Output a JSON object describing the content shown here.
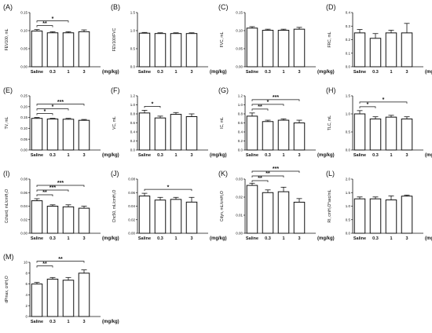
{
  "figure": {
    "unit_label": "(mg/kg)"
  },
  "chart_data": [
    {
      "type": "bar",
      "letter": "(A)",
      "ylabel": "FEV100, mL",
      "categories": [
        "Saline",
        "0.3",
        "1",
        "3"
      ],
      "values": [
        0.099,
        0.094,
        0.094,
        0.097
      ],
      "errors": [
        0.004,
        0.003,
        0.003,
        0.005
      ],
      "ylim": [
        0,
        0.15
      ],
      "ticks": [
        "0.00",
        "0.05",
        "0.10",
        "0.15"
      ],
      "tick_values": [
        0,
        0.05,
        0.1,
        0.15
      ],
      "sig": [
        {
          "from": 0,
          "to": 1,
          "label": "**"
        },
        {
          "from": 0,
          "to": 2,
          "label": "*"
        }
      ]
    },
    {
      "type": "bar",
      "letter": "(B)",
      "ylabel": "FEV100/FVC",
      "categories": [
        "Saline",
        "0.3",
        "1",
        "3"
      ],
      "values": [
        0.93,
        0.92,
        0.92,
        0.92
      ],
      "errors": [
        0.02,
        0.02,
        0.02,
        0.02
      ],
      "ylim": [
        0,
        1.5
      ],
      "ticks": [
        "0.0",
        "0.5",
        "1.0",
        "1.5"
      ],
      "tick_values": [
        0,
        0.5,
        1,
        1.5
      ],
      "sig": []
    },
    {
      "type": "bar",
      "letter": "(C)",
      "ylabel": "FVC, mL",
      "categories": [
        "Saline",
        "0.3",
        "1",
        "3"
      ],
      "values": [
        0.107,
        0.101,
        0.101,
        0.104
      ],
      "errors": [
        0.004,
        0.003,
        0.003,
        0.005
      ],
      "ylim": [
        0,
        0.15
      ],
      "ticks": [
        "0.00",
        "0.05",
        "0.10",
        "0.15"
      ],
      "tick_values": [
        0,
        0.05,
        0.1,
        0.15
      ],
      "sig": []
    },
    {
      "type": "bar",
      "letter": "(D)",
      "ylabel": "FRC, mL",
      "categories": [
        "Saline",
        "0.3",
        "1",
        "3"
      ],
      "values": [
        0.25,
        0.21,
        0.25,
        0.25
      ],
      "errors": [
        0.025,
        0.035,
        0.02,
        0.07
      ],
      "ylim": [
        0,
        0.4
      ],
      "ticks": [
        "0.0",
        "0.1",
        "0.2",
        "0.3",
        "0.4"
      ],
      "tick_values": [
        0,
        0.1,
        0.2,
        0.3,
        0.4
      ],
      "sig": []
    },
    {
      "type": "bar",
      "letter": "(E)",
      "ylabel": "TV, mL",
      "categories": [
        "Saline",
        "0.3",
        "1",
        "3"
      ],
      "values": [
        0.146,
        0.143,
        0.142,
        0.137
      ],
      "errors": [
        0.004,
        0.003,
        0.004,
        0.004
      ],
      "ylim": [
        0,
        0.25
      ],
      "ticks": [
        "0.00",
        "0.05",
        "0.10",
        "0.15",
        "0.20",
        "0.25"
      ],
      "tick_values": [
        0,
        0.05,
        0.1,
        0.15,
        0.2,
        0.25
      ],
      "sig": [
        {
          "from": 0,
          "to": 1,
          "label": "*"
        },
        {
          "from": 0,
          "to": 2,
          "label": "*"
        },
        {
          "from": 0,
          "to": 3,
          "label": "***"
        }
      ]
    },
    {
      "type": "bar",
      "letter": "(F)",
      "ylabel": "VC, mL",
      "categories": [
        "Saline",
        "0.3",
        "1",
        "3"
      ],
      "values": [
        0.82,
        0.71,
        0.79,
        0.74
      ],
      "errors": [
        0.06,
        0.04,
        0.04,
        0.06
      ],
      "ylim": [
        0,
        1.2
      ],
      "ticks": [
        "0.0",
        "0.2",
        "0.4",
        "0.6",
        "0.8",
        "1.0",
        "1.2"
      ],
      "tick_values": [
        0,
        0.2,
        0.4,
        0.6,
        0.8,
        1.0,
        1.2
      ],
      "sig": [
        {
          "from": 0,
          "to": 1,
          "label": "*"
        }
      ]
    },
    {
      "type": "bar",
      "letter": "(G)",
      "ylabel": "IC, mL",
      "categories": [
        "Saline",
        "0.3",
        "1",
        "3"
      ],
      "values": [
        0.75,
        0.63,
        0.66,
        0.6
      ],
      "errors": [
        0.07,
        0.03,
        0.03,
        0.06
      ],
      "ylim": [
        0,
        1.2
      ],
      "ticks": [
        "0.0",
        "0.2",
        "0.4",
        "0.6",
        "0.8",
        "1.0",
        "1.2"
      ],
      "tick_values": [
        0,
        0.2,
        0.4,
        0.6,
        0.8,
        1.0,
        1.2
      ],
      "sig": [
        {
          "from": 0,
          "to": 1,
          "label": "**"
        },
        {
          "from": 0,
          "to": 2,
          "label": "*"
        },
        {
          "from": 0,
          "to": 3,
          "label": "***"
        }
      ]
    },
    {
      "type": "bar",
      "letter": "(H)",
      "ylabel": "TLC, mL",
      "categories": [
        "Saline",
        "0.3",
        "1",
        "3"
      ],
      "values": [
        1.0,
        0.86,
        0.91,
        0.86
      ],
      "errors": [
        0.09,
        0.06,
        0.05,
        0.06
      ],
      "ylim": [
        0,
        1.5
      ],
      "ticks": [
        "0.0",
        "0.5",
        "1.0",
        "1.5"
      ],
      "tick_values": [
        0,
        0.5,
        1.0,
        1.5
      ],
      "sig": [
        {
          "from": 0,
          "to": 1,
          "label": "*"
        },
        {
          "from": 0,
          "to": 3,
          "label": "*"
        }
      ]
    },
    {
      "type": "bar",
      "letter": "(I)",
      "ylabel": "Cchord, mL/cmH₂O",
      "categories": [
        "Saline",
        "0.3",
        "1",
        "3"
      ],
      "values": [
        0.048,
        0.04,
        0.039,
        0.037
      ],
      "errors": [
        0.003,
        0.002,
        0.003,
        0.003
      ],
      "ylim": [
        0,
        0.08
      ],
      "ticks": [
        "0.00",
        "0.02",
        "0.04",
        "0.06",
        "0.08"
      ],
      "tick_values": [
        0,
        0.02,
        0.04,
        0.06,
        0.08
      ],
      "sig": [
        {
          "from": 0,
          "to": 1,
          "label": "**"
        },
        {
          "from": 0,
          "to": 2,
          "label": "***"
        },
        {
          "from": 0,
          "to": 3,
          "label": "***"
        }
      ]
    },
    {
      "type": "bar",
      "letter": "(J)",
      "ylabel": "Chc50, mL/cmH₂O",
      "categories": [
        "Saline",
        "0.3",
        "1",
        "3"
      ],
      "values": [
        0.055,
        0.049,
        0.05,
        0.046
      ],
      "errors": [
        0.004,
        0.004,
        0.003,
        0.007
      ],
      "ylim": [
        0,
        0.08
      ],
      "ticks": [
        "0.00",
        "0.02",
        "0.04",
        "0.06",
        "0.08"
      ],
      "tick_values": [
        0,
        0.02,
        0.04,
        0.06,
        0.08
      ],
      "sig": [
        {
          "from": 0,
          "to": 3,
          "label": "*"
        }
      ]
    },
    {
      "type": "bar",
      "letter": "(K)",
      "ylabel": "Cdyn, mL/cmH₂O",
      "categories": [
        "Saline",
        "0.3",
        "1",
        "3"
      ],
      "values": [
        0.0265,
        0.0225,
        0.023,
        0.0172
      ],
      "errors": [
        0.0012,
        0.0015,
        0.0025,
        0.002
      ],
      "ylim": [
        0,
        0.03
      ],
      "ticks": [
        "0.00",
        "0.01",
        "0.02",
        "0.03"
      ],
      "tick_values": [
        0,
        0.01,
        0.02,
        0.03
      ],
      "sig": [
        {
          "from": 0,
          "to": 1,
          "label": "**"
        },
        {
          "from": 0,
          "to": 2,
          "label": "**"
        },
        {
          "from": 0,
          "to": 3,
          "label": "***"
        }
      ]
    },
    {
      "type": "bar",
      "letter": "(L)",
      "ylabel": "RI, cmH₂O*sec/mL",
      "categories": [
        "Saline",
        "0.3",
        "1",
        "3"
      ],
      "values": [
        1.27,
        1.27,
        1.23,
        1.37
      ],
      "errors": [
        0.07,
        0.07,
        0.15,
        0.04
      ],
      "ylim": [
        0,
        2.0
      ],
      "ticks": [
        "0.0",
        "0.5",
        "1.0",
        "1.5",
        "2.0"
      ],
      "tick_values": [
        0,
        0.5,
        1.0,
        1.5,
        2.0
      ],
      "sig": []
    },
    {
      "type": "bar",
      "letter": "(M)",
      "ylabel": "dPmax, cmH₂O",
      "categories": [
        "Saline",
        "0.3",
        "1",
        "3"
      ],
      "values": [
        6.0,
        6.9,
        6.7,
        8.0
      ],
      "errors": [
        0.3,
        0.3,
        0.5,
        0.6
      ],
      "ylim": [
        0,
        10
      ],
      "ticks": [
        "0",
        "2",
        "4",
        "6",
        "8",
        "10"
      ],
      "tick_values": [
        0,
        2,
        4,
        6,
        8,
        10
      ],
      "sig": [
        {
          "from": 0,
          "to": 1,
          "label": "**"
        },
        {
          "from": 0,
          "to": 3,
          "label": "**"
        }
      ]
    }
  ]
}
